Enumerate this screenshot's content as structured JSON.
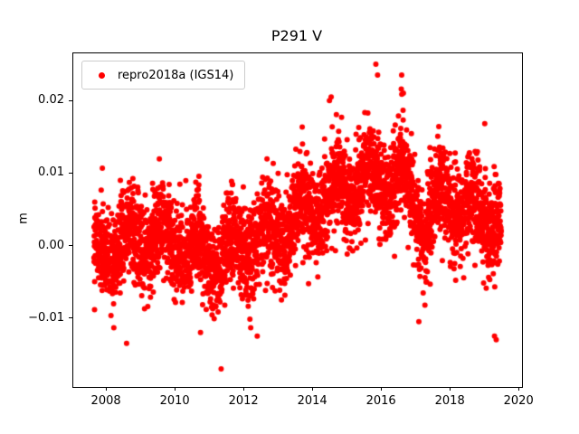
{
  "title": "P291 V",
  "ylabel": "m",
  "legend": {
    "label": "repro2018a (IGS14)",
    "marker_color": "#ff0000"
  },
  "chart_data": {
    "type": "scatter",
    "title": "P291 V",
    "xlabel": "",
    "ylabel": "m",
    "series_name": "repro2018a (IGS14)",
    "marker_color": "#ff0000",
    "marker_radius_px": 3,
    "grid": false,
    "legend_position": "upper-left",
    "xlim": [
      2007.05,
      2020.1
    ],
    "ylim": [
      -0.0195,
      0.0265
    ],
    "xticks": [
      2008,
      2010,
      2012,
      2014,
      2016,
      2018,
      2020
    ],
    "yticks": [
      -0.01,
      0.0,
      0.01,
      0.02
    ],
    "x_range": [
      2007.65,
      2019.5
    ],
    "points_per_year": 330,
    "seed": 42,
    "noise_std": 0.0031,
    "outlier_prob": 0.03,
    "outlier_extra_std": 0.0045,
    "seasonal": {
      "amplitude": 0.0023,
      "phase": 0.42
    },
    "trend": [
      {
        "x": 2007.65,
        "y": -0.001
      },
      {
        "x": 2008.5,
        "y": 0.0005
      },
      {
        "x": 2009.5,
        "y": 0.001
      },
      {
        "x": 2010.5,
        "y": -0.0005
      },
      {
        "x": 2011.3,
        "y": -0.002
      },
      {
        "x": 2012.0,
        "y": 0.0
      },
      {
        "x": 2013.0,
        "y": 0.002
      },
      {
        "x": 2014.0,
        "y": 0.005
      },
      {
        "x": 2014.8,
        "y": 0.008
      },
      {
        "x": 2015.5,
        "y": 0.0085
      },
      {
        "x": 2016.0,
        "y": 0.009
      },
      {
        "x": 2016.7,
        "y": 0.009
      },
      {
        "x": 2017.2,
        "y": 0.003
      },
      {
        "x": 2017.8,
        "y": 0.006
      },
      {
        "x": 2018.5,
        "y": 0.005
      },
      {
        "x": 2019.0,
        "y": 0.004
      },
      {
        "x": 2019.5,
        "y": 0.003
      }
    ],
    "outliers": [
      {
        "x": 2011.35,
        "y": -0.017
      },
      {
        "x": 2015.85,
        "y": 0.025
      },
      {
        "x": 2015.9,
        "y": 0.0235
      },
      {
        "x": 2014.55,
        "y": 0.0205
      },
      {
        "x": 2014.5,
        "y": 0.02
      },
      {
        "x": 2016.6,
        "y": 0.0235
      },
      {
        "x": 2016.65,
        "y": 0.021
      },
      {
        "x": 2019.35,
        "y": -0.013
      },
      {
        "x": 2019.3,
        "y": -0.0125
      },
      {
        "x": 2008.6,
        "y": -0.0135
      },
      {
        "x": 2012.4,
        "y": -0.0125
      },
      {
        "x": 2010.75,
        "y": -0.012
      },
      {
        "x": 2017.1,
        "y": -0.0105
      }
    ]
  }
}
